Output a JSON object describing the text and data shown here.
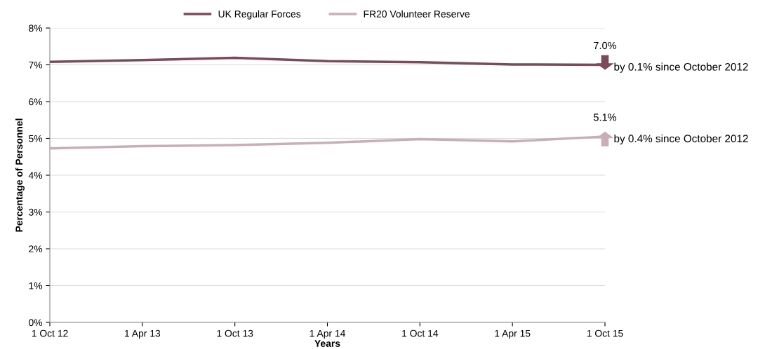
{
  "chart_data": {
    "type": "line",
    "xlabel": "Years",
    "ylabel": "Percentage of Personnel",
    "categories": [
      "1 Oct 12",
      "1 Apr 13",
      "1 Oct 13",
      "1 Apr 14",
      "1 Oct 14",
      "1 Apr 15",
      "1 Oct 15"
    ],
    "series": [
      {
        "name": "UK Regular Forces",
        "color": "#7b4a5b",
        "values": [
          7.08,
          7.13,
          7.19,
          7.1,
          7.07,
          7.01,
          7.0
        ]
      },
      {
        "name": "FR20 Volunteer Reserve",
        "color": "#c9aeb8",
        "values": [
          4.73,
          4.79,
          4.82,
          4.88,
          4.98,
          4.92,
          5.05
        ]
      }
    ],
    "ylim": [
      0,
      8
    ],
    "yticks": [
      {
        "value": 0,
        "label": "0%"
      },
      {
        "value": 1,
        "label": "1%"
      },
      {
        "value": 2,
        "label": "2%"
      },
      {
        "value": 3,
        "label": "3%"
      },
      {
        "value": 4,
        "label": "4%"
      },
      {
        "value": 5,
        "label": "5%"
      },
      {
        "value": 6,
        "label": "6%"
      },
      {
        "value": 7,
        "label": "7%"
      },
      {
        "value": 8,
        "label": "8%"
      }
    ],
    "grid": "y",
    "legend": "top",
    "marker": "none",
    "line_style": "solid",
    "annotations": [
      {
        "text": "7.0%",
        "x": "1 Oct 15",
        "y": 7.0
      },
      {
        "text": "by 0.1% since October 2012",
        "x": "1 Oct 15",
        "y": 7.0
      },
      {
        "text": "5.1%",
        "x": "1 Oct 15",
        "y": 5.05
      },
      {
        "text": "by 0.4% since October 2012",
        "x": "1 Oct 15",
        "y": 5.05
      }
    ]
  }
}
